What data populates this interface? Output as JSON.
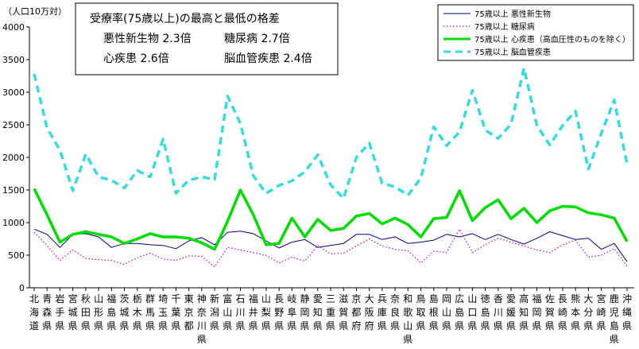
{
  "chart_data": {
    "type": "line",
    "unit_label": "（人口10万対）",
    "ylim": [
      0,
      4000
    ],
    "yticks": [
      0,
      500,
      1000,
      1500,
      2000,
      2500,
      3000,
      3500,
      4000
    ],
    "grid": false,
    "legend_position": "top-right",
    "annotation": {
      "title": "受療率(75歳以上)の最高と最低の格差",
      "lines": [
        "悪性新生物 2.3倍",
        "糖尿病 2.7倍",
        "心疾患 2.6倍",
        "脳血管疾患 2.4倍"
      ]
    },
    "categories": [
      [
        "北",
        "海",
        "道"
      ],
      [
        "青",
        "森",
        "県"
      ],
      [
        "岩",
        "手",
        "県"
      ],
      [
        "宮",
        "城",
        "県"
      ],
      [
        "秋",
        "田",
        "県"
      ],
      [
        "山",
        "形",
        "県"
      ],
      [
        "福",
        "島",
        "県"
      ],
      [
        "茨",
        "城",
        "県"
      ],
      [
        "栃",
        "木",
        "県"
      ],
      [
        "群",
        "馬",
        "県"
      ],
      [
        "埼",
        "玉",
        "県"
      ],
      [
        "千",
        "葉",
        "県"
      ],
      [
        "東",
        "京",
        "都"
      ],
      [
        "神",
        "奈",
        "川",
        "県"
      ],
      [
        "新",
        "潟",
        "県"
      ],
      [
        "富",
        "山",
        "県"
      ],
      [
        "石",
        "川",
        "県"
      ],
      [
        "福",
        "井",
        "県"
      ],
      [
        "山",
        "梨",
        "県"
      ],
      [
        "長",
        "野",
        "県"
      ],
      [
        "岐",
        "阜",
        "県"
      ],
      [
        "静",
        "岡",
        "県"
      ],
      [
        "愛",
        "知",
        "県"
      ],
      [
        "三",
        "重",
        "県"
      ],
      [
        "滋",
        "賀",
        "県"
      ],
      [
        "京",
        "都",
        "府"
      ],
      [
        "大",
        "阪",
        "府"
      ],
      [
        "兵",
        "庫",
        "県"
      ],
      [
        "奈",
        "良",
        "県"
      ],
      [
        "和",
        "歌",
        "山",
        "県"
      ],
      [
        "鳥",
        "取",
        "県"
      ],
      [
        "島",
        "根",
        "県"
      ],
      [
        "岡",
        "山",
        "県"
      ],
      [
        "広",
        "島",
        "県"
      ],
      [
        "山",
        "口",
        "県"
      ],
      [
        "徳",
        "島",
        "県"
      ],
      [
        "香",
        "川",
        "県"
      ],
      [
        "愛",
        "媛",
        "県"
      ],
      [
        "高",
        "知",
        "県"
      ],
      [
        "福",
        "岡",
        "県"
      ],
      [
        "佐",
        "賀",
        "県"
      ],
      [
        "長",
        "崎",
        "県"
      ],
      [
        "熊",
        "本",
        "県"
      ],
      [
        "大",
        "分",
        "県"
      ],
      [
        "宮",
        "崎",
        "県"
      ],
      [
        "鹿",
        "児",
        "島",
        "県"
      ],
      [
        "沖",
        "縄",
        "県"
      ]
    ],
    "series": [
      {
        "name": "75歳以上 悪性新生物",
        "color": "#000080",
        "values": [
          900,
          820,
          620,
          820,
          830,
          780,
          620,
          680,
          680,
          660,
          650,
          600,
          720,
          770,
          660,
          850,
          870,
          830,
          720,
          610,
          700,
          740,
          620,
          650,
          680,
          820,
          820,
          740,
          780,
          680,
          700,
          730,
          820,
          780,
          830,
          740,
          820,
          740,
          670,
          760,
          860,
          800,
          740,
          760,
          590,
          680,
          400
        ]
      },
      {
        "name": "75歳以上 糖尿病",
        "color": "#cc00cc",
        "values": [
          850,
          650,
          420,
          580,
          450,
          430,
          420,
          360,
          460,
          530,
          440,
          420,
          490,
          480,
          320,
          620,
          580,
          540,
          500,
          380,
          470,
          410,
          650,
          520,
          530,
          640,
          750,
          640,
          590,
          570,
          380,
          560,
          540,
          900,
          540,
          660,
          760,
          700,
          640,
          580,
          540,
          660,
          730,
          470,
          500,
          600,
          330
        ]
      },
      {
        "name": "75歳以上 心疾患（高血圧性のものを除く）",
        "color": "#00dd00",
        "values": [
          1520,
          1120,
          700,
          820,
          860,
          820,
          780,
          680,
          750,
          830,
          780,
          780,
          760,
          690,
          590,
          1020,
          1500,
          1120,
          660,
          680,
          1070,
          780,
          1050,
          880,
          910,
          1100,
          1140,
          980,
          1070,
          970,
          780,
          1060,
          1080,
          1490,
          1030,
          1230,
          1350,
          1060,
          1220,
          1000,
          1180,
          1250,
          1240,
          1150,
          1120,
          1070,
          710
        ]
      },
      {
        "name": "75歳以上 脳血管疾患",
        "color": "#33dddd",
        "values": [
          3280,
          2450,
          2110,
          1490,
          2050,
          1700,
          1650,
          1530,
          1800,
          1700,
          2280,
          1450,
          1650,
          1700,
          1660,
          2940,
          2520,
          1720,
          1450,
          1570,
          1640,
          1780,
          2040,
          1580,
          1370,
          2000,
          2220,
          1600,
          1550,
          1420,
          1680,
          2470,
          2180,
          2390,
          3030,
          2420,
          2290,
          2510,
          3370,
          2490,
          2190,
          2490,
          2710,
          1820,
          2370,
          2880,
          1890
        ]
      }
    ]
  }
}
